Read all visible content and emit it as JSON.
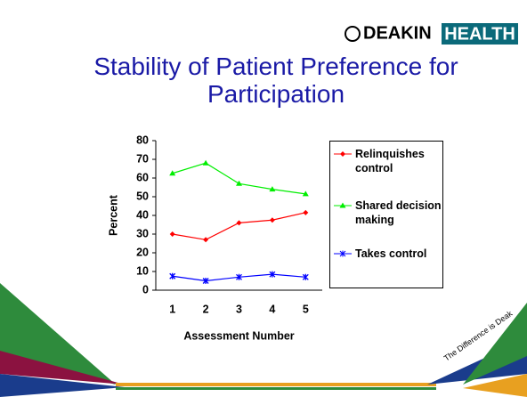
{
  "logo": {
    "brand": "DEAKIN",
    "badge": "HEALTH"
  },
  "tagline": "The Difference is Deak",
  "chart_data": {
    "type": "line",
    "title": "Stability of Patient Preference for Participation",
    "x_label": "Assessment Number",
    "y_label": "Percent",
    "categories": [
      "1",
      "2",
      "3",
      "4",
      "5"
    ],
    "series": [
      {
        "name": "Relinquishes control",
        "color": "#ff0000",
        "values": [
          30,
          27,
          36,
          37.5,
          41.5
        ]
      },
      {
        "name": "Shared decision making",
        "color": "#00ee00",
        "values": [
          62.5,
          68,
          57,
          54,
          51.5
        ]
      },
      {
        "name": "Takes control",
        "color": "#0000ff",
        "values": [
          7.5,
          5,
          7,
          8.5,
          7
        ]
      }
    ],
    "ylim": [
      0,
      80
    ],
    "yticks": [
      0,
      10,
      20,
      30,
      40,
      50,
      60,
      70,
      80
    ]
  }
}
